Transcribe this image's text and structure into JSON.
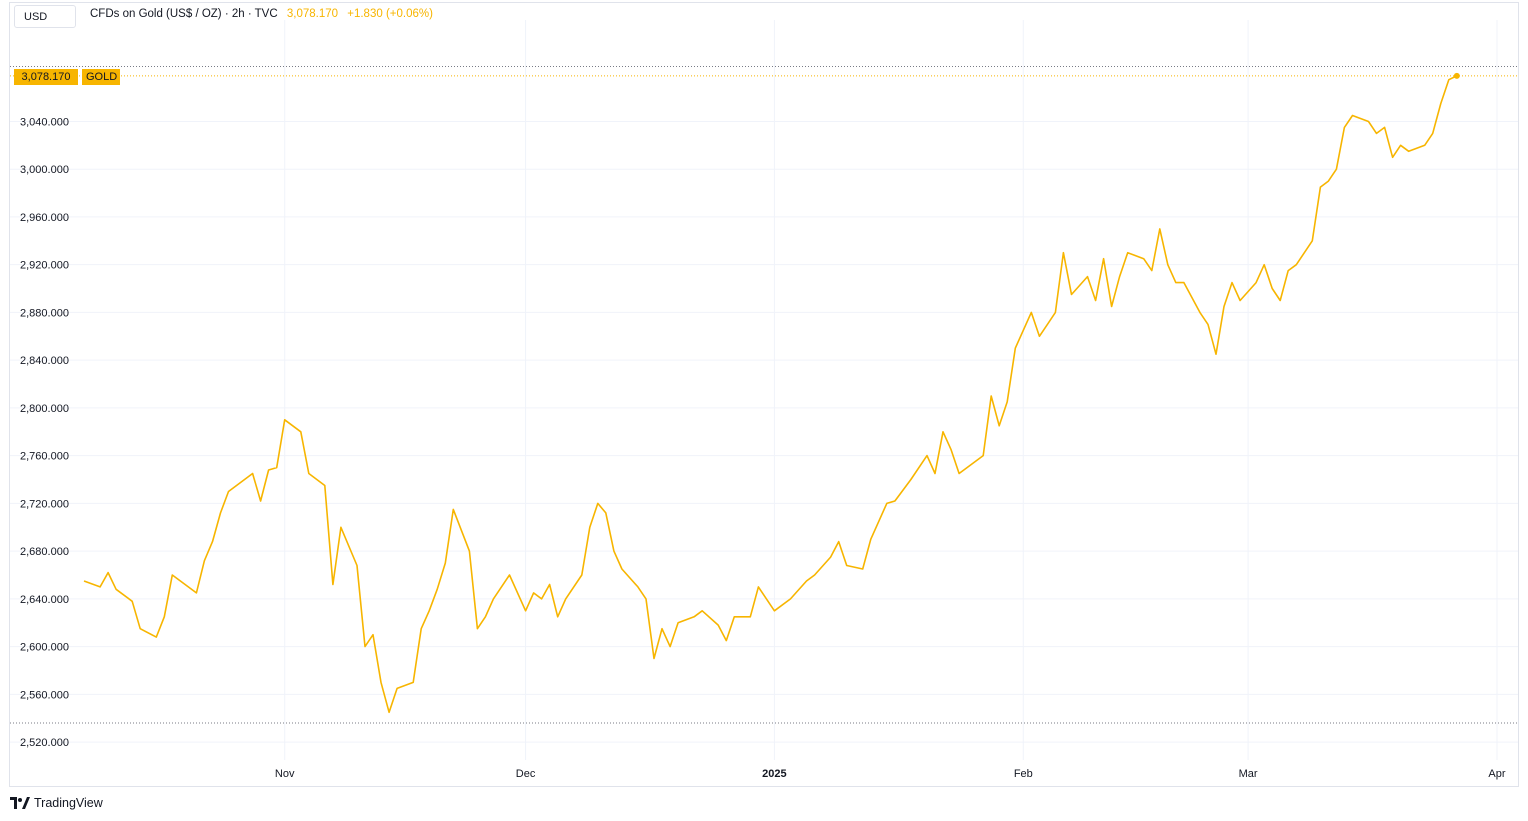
{
  "toolbar": {
    "currency": "USD"
  },
  "legend": {
    "symbol": "CFDs on Gold (US$ / OZ) · 2h · TVC",
    "last": "3,078.170",
    "change": "+1.830 (+0.06%)"
  },
  "badge": {
    "price": "3,078.170",
    "name": "GOLD"
  },
  "brand": {
    "name": "TradingView"
  },
  "colors": {
    "line": "#f7b500",
    "grid": "#f0f3fa",
    "axis_text": "#131722"
  },
  "chart_data": {
    "type": "line",
    "title": "CFDs on Gold (US$ / OZ) · 2h · TVC",
    "xlabel": "",
    "ylabel": "",
    "grid": true,
    "ylim": [
      2505,
      3125
    ],
    "y_ticks": [
      "3,040.000",
      "3,000.000",
      "2,960.000",
      "2,920.000",
      "2,880.000",
      "2,840.000",
      "2,800.000",
      "2,760.000",
      "2,720.000",
      "2,680.000",
      "2,640.000",
      "2,600.000",
      "2,560.000",
      "2,520.000"
    ],
    "y_tick_values": [
      3040,
      3000,
      2960,
      2920,
      2880,
      2840,
      2800,
      2760,
      2720,
      2680,
      2640,
      2600,
      2560,
      2520
    ],
    "xlim": [
      "2024-10-07",
      "2025-04-02"
    ],
    "x_ticks": [
      {
        "label": "Nov",
        "date": "2024-11-01",
        "bold": false
      },
      {
        "label": "Dec",
        "date": "2024-12-01",
        "bold": false
      },
      {
        "label": "2025",
        "date": "2025-01-01",
        "bold": true
      },
      {
        "label": "Feb",
        "date": "2025-02-01",
        "bold": false
      },
      {
        "label": "Mar",
        "date": "2025-03-01",
        "bold": false
      },
      {
        "label": "Apr",
        "date": "2025-04-01",
        "bold": false
      }
    ],
    "reference_lines": {
      "high": 3086,
      "low": 2536
    },
    "series": [
      {
        "color": "#f7b500",
        "points": [
          [
            "2024-10-07",
            2655
          ],
          [
            "2024-10-09",
            2650
          ],
          [
            "2024-10-10",
            2662
          ],
          [
            "2024-10-11",
            2648
          ],
          [
            "2024-10-13",
            2638
          ],
          [
            "2024-10-14",
            2615
          ],
          [
            "2024-10-16",
            2608
          ],
          [
            "2024-10-17",
            2625
          ],
          [
            "2024-10-18",
            2660
          ],
          [
            "2024-10-21",
            2645
          ],
          [
            "2024-10-22",
            2672
          ],
          [
            "2024-10-23",
            2688
          ],
          [
            "2024-10-24",
            2712
          ],
          [
            "2024-10-25",
            2730
          ],
          [
            "2024-10-28",
            2745
          ],
          [
            "2024-10-29",
            2722
          ],
          [
            "2024-10-30",
            2748
          ],
          [
            "2024-10-31",
            2750
          ],
          [
            "2024-11-01",
            2790
          ],
          [
            "2024-11-03",
            2780
          ],
          [
            "2024-11-04",
            2745
          ],
          [
            "2024-11-05",
            2740
          ],
          [
            "2024-11-06",
            2735
          ],
          [
            "2024-11-07",
            2652
          ],
          [
            "2024-11-08",
            2700
          ],
          [
            "2024-11-10",
            2668
          ],
          [
            "2024-11-11",
            2600
          ],
          [
            "2024-11-12",
            2610
          ],
          [
            "2024-11-13",
            2570
          ],
          [
            "2024-11-14",
            2545
          ],
          [
            "2024-11-15",
            2565
          ],
          [
            "2024-11-17",
            2570
          ],
          [
            "2024-11-18",
            2615
          ],
          [
            "2024-11-19",
            2630
          ],
          [
            "2024-11-20",
            2648
          ],
          [
            "2024-11-21",
            2670
          ],
          [
            "2024-11-22",
            2715
          ],
          [
            "2024-11-24",
            2680
          ],
          [
            "2024-11-25",
            2615
          ],
          [
            "2024-11-26",
            2625
          ],
          [
            "2024-11-27",
            2640
          ],
          [
            "2024-11-29",
            2660
          ],
          [
            "2024-12-01",
            2630
          ],
          [
            "2024-12-02",
            2645
          ],
          [
            "2024-12-03",
            2640
          ],
          [
            "2024-12-04",
            2652
          ],
          [
            "2024-12-05",
            2625
          ],
          [
            "2024-12-06",
            2640
          ],
          [
            "2024-12-08",
            2660
          ],
          [
            "2024-12-09",
            2700
          ],
          [
            "2024-12-10",
            2720
          ],
          [
            "2024-12-11",
            2712
          ],
          [
            "2024-12-12",
            2680
          ],
          [
            "2024-12-13",
            2665
          ],
          [
            "2024-12-15",
            2650
          ],
          [
            "2024-12-16",
            2640
          ],
          [
            "2024-12-17",
            2590
          ],
          [
            "2024-12-18",
            2615
          ],
          [
            "2024-12-19",
            2600
          ],
          [
            "2024-12-20",
            2620
          ],
          [
            "2024-12-22",
            2625
          ],
          [
            "2024-12-23",
            2630
          ],
          [
            "2024-12-25",
            2618
          ],
          [
            "2024-12-26",
            2605
          ],
          [
            "2024-12-27",
            2625
          ],
          [
            "2024-12-29",
            2625
          ],
          [
            "2024-12-30",
            2650
          ],
          [
            "2025-01-01",
            2630
          ],
          [
            "2025-01-03",
            2640
          ],
          [
            "2025-01-05",
            2655
          ],
          [
            "2025-01-06",
            2660
          ],
          [
            "2025-01-08",
            2675
          ],
          [
            "2025-01-09",
            2688
          ],
          [
            "2025-01-10",
            2668
          ],
          [
            "2025-01-12",
            2665
          ],
          [
            "2025-01-13",
            2690
          ],
          [
            "2025-01-14",
            2705
          ],
          [
            "2025-01-15",
            2720
          ],
          [
            "2025-01-16",
            2722
          ],
          [
            "2025-01-18",
            2740
          ],
          [
            "2025-01-20",
            2760
          ],
          [
            "2025-01-21",
            2745
          ],
          [
            "2025-01-22",
            2780
          ],
          [
            "2025-01-23",
            2765
          ],
          [
            "2025-01-24",
            2745
          ],
          [
            "2025-01-27",
            2760
          ],
          [
            "2025-01-28",
            2810
          ],
          [
            "2025-01-29",
            2785
          ],
          [
            "2025-01-30",
            2805
          ],
          [
            "2025-01-31",
            2850
          ],
          [
            "2025-02-02",
            2880
          ],
          [
            "2025-02-03",
            2860
          ],
          [
            "2025-02-04",
            2870
          ],
          [
            "2025-02-05",
            2880
          ],
          [
            "2025-02-06",
            2930
          ],
          [
            "2025-02-07",
            2895
          ],
          [
            "2025-02-09",
            2910
          ],
          [
            "2025-02-10",
            2890
          ],
          [
            "2025-02-11",
            2925
          ],
          [
            "2025-02-12",
            2885
          ],
          [
            "2025-02-13",
            2910
          ],
          [
            "2025-02-14",
            2930
          ],
          [
            "2025-02-16",
            2925
          ],
          [
            "2025-02-17",
            2915
          ],
          [
            "2025-02-18",
            2950
          ],
          [
            "2025-02-19",
            2920
          ],
          [
            "2025-02-20",
            2905
          ],
          [
            "2025-02-21",
            2905
          ],
          [
            "2025-02-23",
            2880
          ],
          [
            "2025-02-24",
            2870
          ],
          [
            "2025-02-25",
            2845
          ],
          [
            "2025-02-26",
            2885
          ],
          [
            "2025-02-27",
            2905
          ],
          [
            "2025-02-28",
            2890
          ],
          [
            "2025-03-02",
            2905
          ],
          [
            "2025-03-03",
            2920
          ],
          [
            "2025-03-04",
            2900
          ],
          [
            "2025-03-05",
            2890
          ],
          [
            "2025-03-06",
            2915
          ],
          [
            "2025-03-07",
            2920
          ],
          [
            "2025-03-09",
            2940
          ],
          [
            "2025-03-10",
            2985
          ],
          [
            "2025-03-11",
            2990
          ],
          [
            "2025-03-12",
            3000
          ],
          [
            "2025-03-13",
            3035
          ],
          [
            "2025-03-14",
            3045
          ],
          [
            "2025-03-16",
            3040
          ],
          [
            "2025-03-17",
            3030
          ],
          [
            "2025-03-18",
            3035
          ],
          [
            "2025-03-19",
            3010
          ],
          [
            "2025-03-20",
            3020
          ],
          [
            "2025-03-21",
            3015
          ],
          [
            "2025-03-23",
            3020
          ],
          [
            "2025-03-24",
            3030
          ],
          [
            "2025-03-25",
            3055
          ],
          [
            "2025-03-26",
            3075
          ],
          [
            "2025-03-27",
            3078.17
          ]
        ]
      }
    ]
  }
}
